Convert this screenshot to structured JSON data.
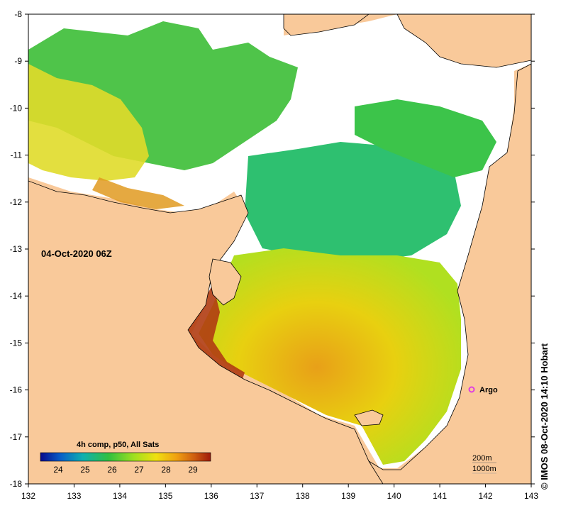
{
  "map": {
    "timestamp": "04-Oct-2020 06Z",
    "credit": "© IMOS 08-Oct-2020 14:10 Hobart",
    "argo_label": "Argo",
    "depth_labels": [
      "200m",
      "1000m"
    ],
    "lon_ticks": [
      "132",
      "133",
      "134",
      "135",
      "136",
      "137",
      "138",
      "139",
      "140",
      "141",
      "142",
      "143"
    ],
    "lat_ticks": [
      "-8",
      "-9",
      "-10",
      "-11",
      "-12",
      "-13",
      "-14",
      "-15",
      "-16",
      "-17",
      "-18"
    ]
  },
  "legend": {
    "title": "4h comp, p50, All Sats",
    "ticks": [
      "24",
      "25",
      "26",
      "27",
      "28",
      "29"
    ],
    "colors": [
      "#0a0a8c",
      "#0a60c8",
      "#10b0b0",
      "#30c040",
      "#a0e020",
      "#f0e010",
      "#f0a010",
      "#d06010",
      "#a01a0a"
    ]
  },
  "colors": {
    "land": "#f9c99a",
    "no_data": "#ffffff",
    "argo": "#e040e0"
  }
}
